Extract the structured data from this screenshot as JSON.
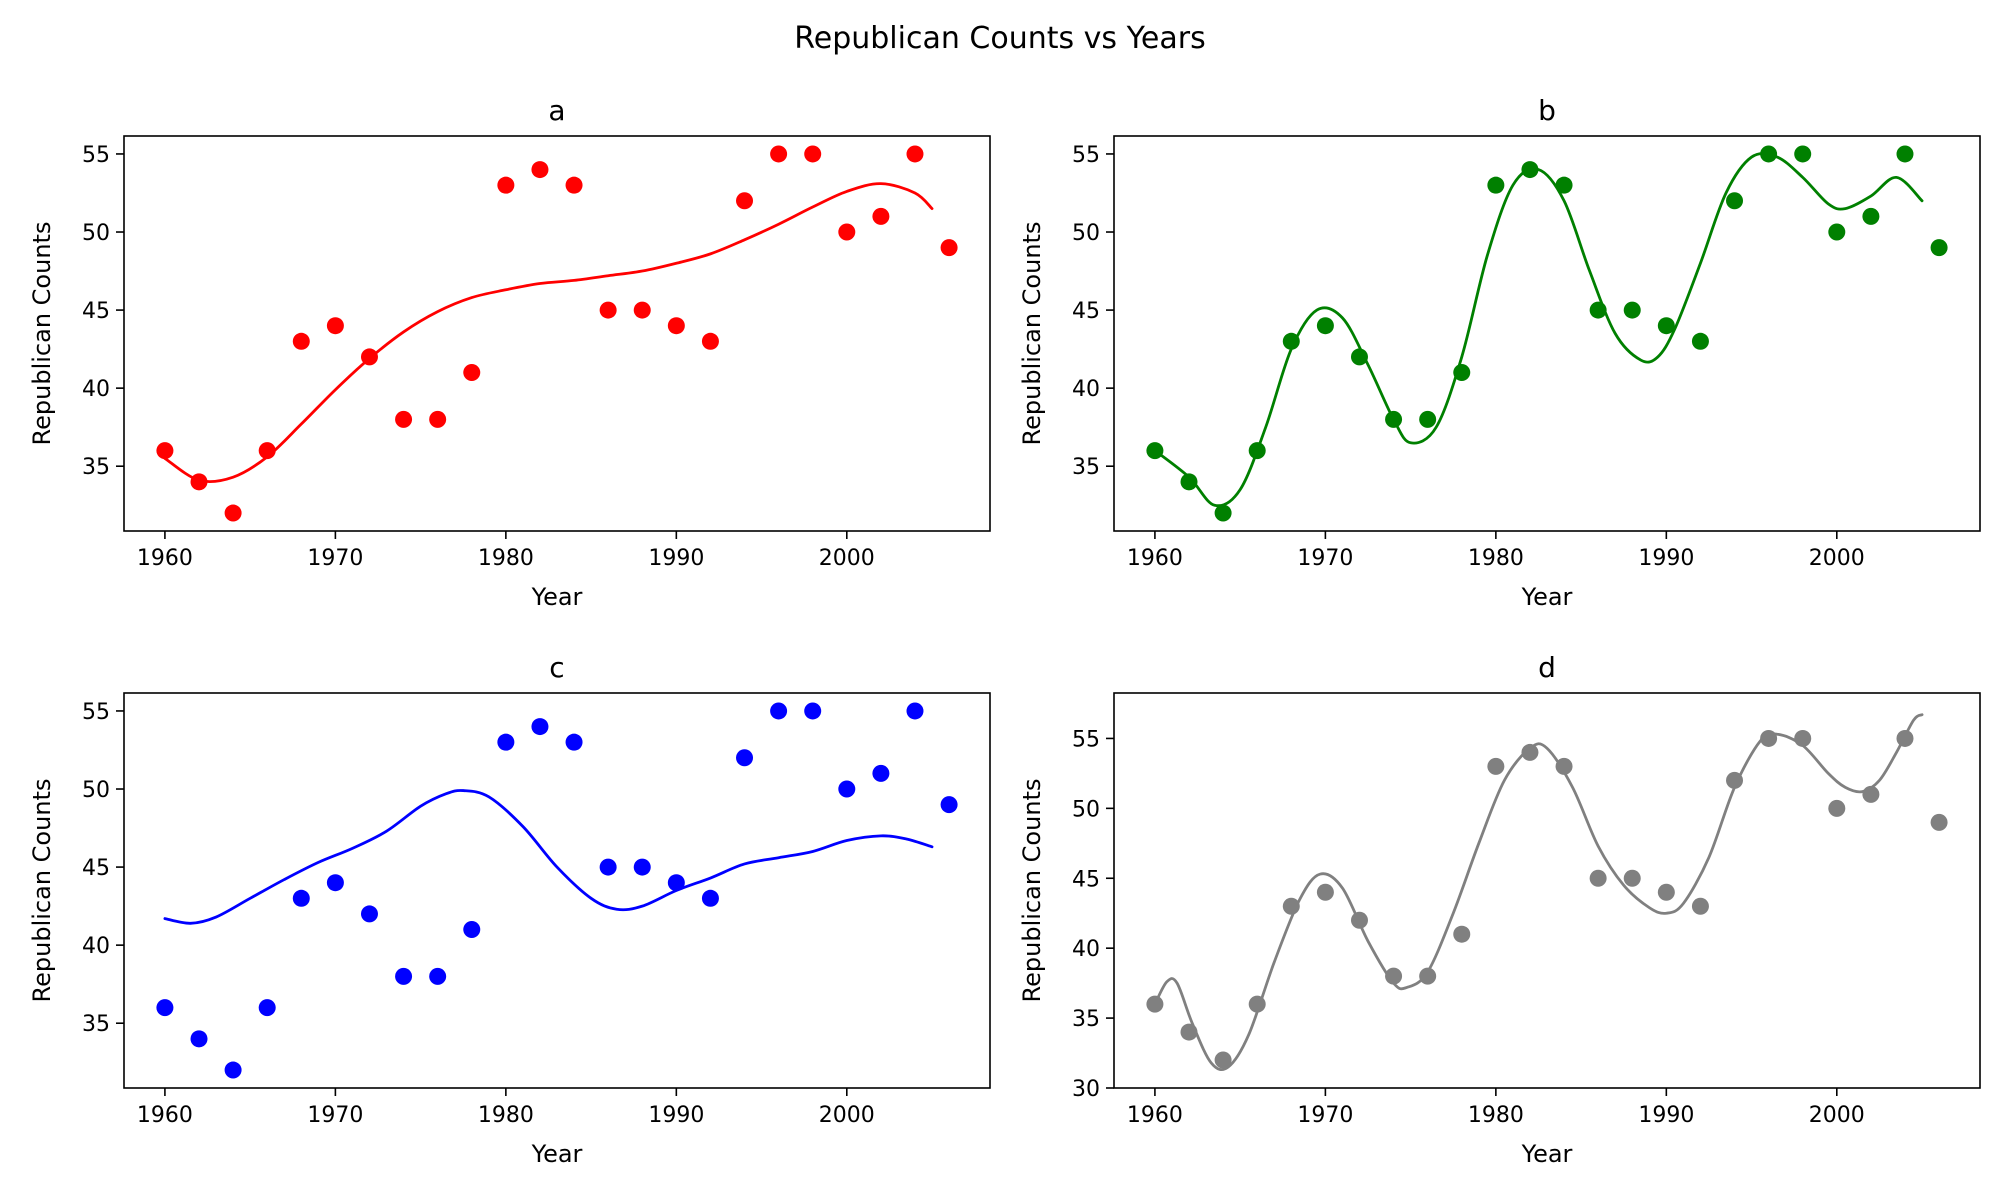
{
  "figure": {
    "title": "Republican Counts vs Years"
  },
  "chart_data": [
    {
      "type": "scatter",
      "title": "a",
      "xlabel": "Year",
      "ylabel": "Republican Counts",
      "xlim": [
        1957.6,
        2008.4
      ],
      "ylim": [
        30.85,
        56.15
      ],
      "xticks": [
        1960,
        1970,
        1980,
        1990,
        2000
      ],
      "yticks": [
        35,
        40,
        45,
        50,
        55
      ],
      "color": "#ff0000",
      "points": {
        "x": [
          1960,
          1962,
          1964,
          1966,
          1968,
          1970,
          1972,
          1974,
          1976,
          1978,
          1980,
          1982,
          1984,
          1986,
          1988,
          1990,
          1992,
          1994,
          1996,
          1998,
          2000,
          2002,
          2004,
          2006
        ],
        "y": [
          36,
          34,
          32,
          36,
          43,
          44,
          42,
          38,
          38,
          41,
          53,
          54,
          53,
          45,
          45,
          44,
          43,
          52,
          55,
          55,
          50,
          51,
          55,
          49
        ]
      },
      "curve": {
        "x": [
          1960,
          1962,
          1964,
          1966,
          1968,
          1970,
          1972,
          1974,
          1976,
          1978,
          1980,
          1982,
          1984,
          1986,
          1988,
          1990,
          1992,
          1994,
          1996,
          1998,
          2000,
          2002,
          2004,
          2005
        ],
        "y": [
          35.5,
          34.1,
          34.3,
          35.6,
          37.7,
          39.9,
          41.9,
          43.6,
          44.9,
          45.8,
          46.3,
          46.7,
          46.9,
          47.2,
          47.5,
          48.0,
          48.6,
          49.5,
          50.5,
          51.6,
          52.6,
          53.1,
          52.5,
          51.5
        ]
      }
    },
    {
      "type": "scatter",
      "title": "b",
      "xlabel": "Year",
      "ylabel": "Republican Counts",
      "xlim": [
        1957.6,
        2008.4
      ],
      "ylim": [
        30.85,
        56.15
      ],
      "xticks": [
        1960,
        1970,
        1980,
        1990,
        2000
      ],
      "yticks": [
        35,
        40,
        45,
        50,
        55
      ],
      "color": "#008000",
      "points": {
        "x": [
          1960,
          1962,
          1964,
          1966,
          1968,
          1970,
          1972,
          1974,
          1976,
          1978,
          1980,
          1982,
          1984,
          1986,
          1988,
          1990,
          1992,
          1994,
          1996,
          1998,
          2000,
          2002,
          2004,
          2006
        ],
        "y": [
          36,
          34,
          32,
          36,
          43,
          44,
          42,
          38,
          38,
          41,
          53,
          54,
          53,
          45,
          45,
          44,
          43,
          52,
          55,
          55,
          50,
          51,
          55,
          49
        ]
      },
      "curve": {
        "x": [
          1960,
          1962,
          1963.5,
          1965,
          1966.5,
          1968,
          1969.5,
          1971,
          1972.5,
          1974,
          1975,
          1976.5,
          1978,
          1979.5,
          1981,
          1982.5,
          1984,
          1985.5,
          1987,
          1988.5,
          1989.5,
          1990.5,
          1992,
          1993.5,
          1995,
          1996.5,
          1998,
          1999.5,
          2000.5,
          2002,
          2003.5,
          2005
        ],
        "y": [
          36,
          34.3,
          32.5,
          33.5,
          37.5,
          42.5,
          45.0,
          44.5,
          41.5,
          38.0,
          36.5,
          37.5,
          42.0,
          48.5,
          53.0,
          54.0,
          52.0,
          47.5,
          43.5,
          41.8,
          42.0,
          43.8,
          48.0,
          52.5,
          54.8,
          54.8,
          53.5,
          51.8,
          51.5,
          52.3,
          53.5,
          52.0
        ]
      }
    },
    {
      "type": "scatter",
      "title": "c",
      "xlabel": "Year",
      "ylabel": "Republican Counts",
      "xlim": [
        1957.6,
        2008.4
      ],
      "ylim": [
        30.85,
        56.15
      ],
      "xticks": [
        1960,
        1970,
        1980,
        1990,
        2000
      ],
      "yticks": [
        35,
        40,
        45,
        50,
        55
      ],
      "color": "#0000ff",
      "points": {
        "x": [
          1960,
          1962,
          1964,
          1966,
          1968,
          1970,
          1972,
          1974,
          1976,
          1978,
          1980,
          1982,
          1984,
          1986,
          1988,
          1990,
          1992,
          1994,
          1996,
          1998,
          2000,
          2002,
          2004,
          2006
        ],
        "y": [
          36,
          34,
          32,
          36,
          43,
          44,
          42,
          38,
          38,
          41,
          53,
          54,
          53,
          45,
          45,
          44,
          43,
          52,
          55,
          55,
          50,
          51,
          55,
          49
        ]
      },
      "curve": {
        "x": [
          1960,
          1961.5,
          1963,
          1965,
          1967,
          1969,
          1971,
          1973,
          1975,
          1976.5,
          1977.5,
          1979,
          1981,
          1983,
          1985,
          1986.5,
          1988,
          1990,
          1992,
          1994,
          1996,
          1998,
          2000,
          2002,
          2003.5,
          2005
        ],
        "y": [
          41.7,
          41.4,
          41.8,
          43.0,
          44.2,
          45.3,
          46.2,
          47.3,
          48.9,
          49.7,
          49.9,
          49.5,
          47.6,
          45.0,
          43.0,
          42.3,
          42.5,
          43.5,
          44.3,
          45.2,
          45.6,
          46.0,
          46.7,
          47.0,
          46.8,
          46.3
        ]
      }
    },
    {
      "type": "scatter",
      "title": "d",
      "xlabel": "Year",
      "ylabel": "Republican Counts",
      "xlim": [
        1957.6,
        2008.4
      ],
      "ylim": [
        30.0,
        58.25
      ],
      "xticks": [
        1960,
        1970,
        1980,
        1990,
        2000
      ],
      "yticks": [
        30,
        35,
        40,
        45,
        50,
        55
      ],
      "color": "#808080",
      "points": {
        "x": [
          1960,
          1962,
          1964,
          1966,
          1968,
          1970,
          1972,
          1974,
          1976,
          1978,
          1980,
          1982,
          1984,
          1986,
          1988,
          1990,
          1992,
          1994,
          1996,
          1998,
          2000,
          2002,
          2004,
          2006
        ],
        "y": [
          36,
          34,
          32,
          36,
          43,
          44,
          42,
          38,
          38,
          41,
          53,
          54,
          53,
          45,
          45,
          44,
          43,
          52,
          55,
          55,
          50,
          51,
          55,
          49
        ]
      },
      "curve": {
        "x": [
          1960,
          1960.7,
          1961.3,
          1962.2,
          1963.3,
          1964.3,
          1965.5,
          1967,
          1968.5,
          1969.7,
          1971,
          1972.5,
          1974,
          1974.8,
          1976,
          1977.5,
          1979,
          1980.5,
          1982,
          1983,
          1984.5,
          1986,
          1987.5,
          1989,
          1990,
          1991,
          1992.5,
          1994,
          1995.5,
          1996.5,
          1998,
          1999.5,
          2000.5,
          2001.5,
          2002.5,
          2003.5,
          2004.5,
          2005
        ],
        "y": [
          36.0,
          37.6,
          37.5,
          34.6,
          31.8,
          31.5,
          33.8,
          39.0,
          43.5,
          45.3,
          44.3,
          40.5,
          37.5,
          37.2,
          38.3,
          42.5,
          47.5,
          52.0,
          54.3,
          54.3,
          51.5,
          47.3,
          44.5,
          42.9,
          42.5,
          43.2,
          46.5,
          51.5,
          54.8,
          55.3,
          54.5,
          52.5,
          51.5,
          51.2,
          52.0,
          54.0,
          56.3,
          56.7
        ]
      }
    }
  ]
}
